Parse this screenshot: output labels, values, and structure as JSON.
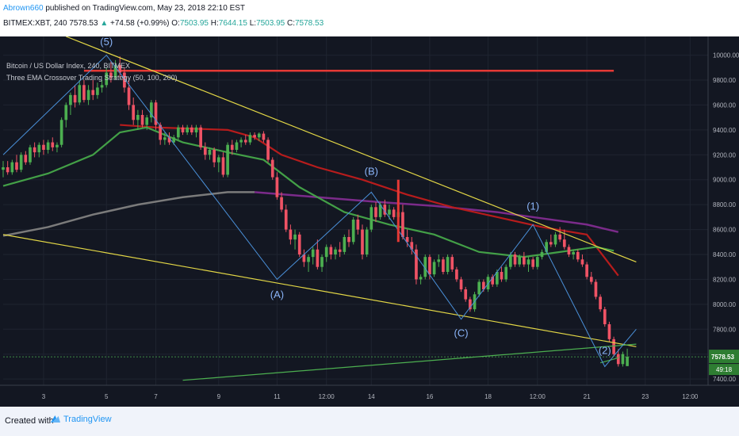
{
  "header": {
    "author": "Abrown660",
    "published_text": "published on TradingView.com, May 23, 2018 22:10 EST",
    "symbol_tf": "BITMEX:XBT, 240",
    "last": "7578.53",
    "change_arrow": "▲",
    "change": "+74.58 (+0.99%)",
    "open_label": "O:",
    "open": "7503.95",
    "high_label": "H:",
    "high": "7644.15",
    "low_label": "L:",
    "low": "7503.95",
    "close_label": "C:",
    "close": "7578.53"
  },
  "legend": {
    "line1": "Bitcoin / US Dollar Index, 240, BITMEX",
    "line2": "Three EMA Crossover Trading Strategy (50, 100, 200)"
  },
  "price_tag": "7578.53",
  "countdown_tag": "49:18",
  "footer": {
    "created_with": "Created with",
    "brand": "TradingView"
  },
  "colors": {
    "background": "#131722",
    "bull": "#4caf50",
    "bear": "#ef5365",
    "trendline": "#e3d746",
    "wave": "#4a90d9",
    "resistance": "#e53935",
    "ema_short": "#43a047",
    "ema_mid": "#b71c1c",
    "ema_long": "#7b7b7b"
  },
  "chart_data": {
    "type": "candlestick",
    "symbol": "XBT",
    "exchange": "BITMEX",
    "interval": "240",
    "ylim": [
      7350,
      10150
    ],
    "y_ticks": [
      7400,
      7600,
      7800,
      8000,
      8200,
      8400,
      8600,
      8800,
      9000,
      9200,
      9400,
      9600,
      9800,
      10000
    ],
    "y_tick_labels": [
      "7400.00",
      "7600.00",
      "7800.00",
      "8000.00",
      "8200.00",
      "8400.00",
      "8600.00",
      "8800.00",
      "9000.00",
      "9200.00",
      "9400.00",
      "9600.00",
      "9800.00",
      "10000.00"
    ],
    "x_range": [
      0,
      140
    ],
    "x_ticks": [
      {
        "i": 9,
        "label": "3"
      },
      {
        "i": 23,
        "label": "5"
      },
      {
        "i": 34,
        "label": "7"
      },
      {
        "i": 48,
        "label": "9"
      },
      {
        "i": 61,
        "label": "11"
      },
      {
        "i": 72,
        "label": "12:00"
      },
      {
        "i": 82,
        "label": "14"
      },
      {
        "i": 95,
        "label": "16"
      },
      {
        "i": 108,
        "label": "18"
      },
      {
        "i": 119,
        "label": "12:00"
      },
      {
        "i": 130,
        "label": "21"
      },
      {
        "i": 143,
        "label": "23"
      },
      {
        "i": 153,
        "label": "12:00"
      }
    ],
    "candles": [
      {
        "o": 9080,
        "h": 9150,
        "l": 9020,
        "c": 9100
      },
      {
        "o": 9100,
        "h": 9150,
        "l": 9040,
        "c": 9060
      },
      {
        "o": 9060,
        "h": 9160,
        "l": 9040,
        "c": 9140
      },
      {
        "o": 9140,
        "h": 9200,
        "l": 9060,
        "c": 9080
      },
      {
        "o": 9080,
        "h": 9220,
        "l": 9060,
        "c": 9200
      },
      {
        "o": 9200,
        "h": 9230,
        "l": 9120,
        "c": 9140
      },
      {
        "o": 9140,
        "h": 9280,
        "l": 9120,
        "c": 9260
      },
      {
        "o": 9260,
        "h": 9300,
        "l": 9180,
        "c": 9220
      },
      {
        "o": 9220,
        "h": 9300,
        "l": 9180,
        "c": 9280
      },
      {
        "o": 9280,
        "h": 9320,
        "l": 9200,
        "c": 9240
      },
      {
        "o": 9240,
        "h": 9320,
        "l": 9210,
        "c": 9300
      },
      {
        "o": 9300,
        "h": 9340,
        "l": 9230,
        "c": 9260
      },
      {
        "o": 9260,
        "h": 9300,
        "l": 9220,
        "c": 9280
      },
      {
        "o": 9280,
        "h": 9500,
        "l": 9260,
        "c": 9480
      },
      {
        "o": 9480,
        "h": 9620,
        "l": 9420,
        "c": 9600
      },
      {
        "o": 9600,
        "h": 9700,
        "l": 9520,
        "c": 9680
      },
      {
        "o": 9680,
        "h": 9760,
        "l": 9580,
        "c": 9620
      },
      {
        "o": 9620,
        "h": 9800,
        "l": 9600,
        "c": 9760
      },
      {
        "o": 9760,
        "h": 9800,
        "l": 9620,
        "c": 9640
      },
      {
        "o": 9640,
        "h": 9760,
        "l": 9600,
        "c": 9720
      },
      {
        "o": 9720,
        "h": 9800,
        "l": 9640,
        "c": 9680
      },
      {
        "o": 9680,
        "h": 9780,
        "l": 9650,
        "c": 9740
      },
      {
        "o": 9740,
        "h": 9800,
        "l": 9700,
        "c": 9760
      },
      {
        "o": 9760,
        "h": 9900,
        "l": 9740,
        "c": 9860
      },
      {
        "o": 9860,
        "h": 9950,
        "l": 9780,
        "c": 9820
      },
      {
        "o": 9820,
        "h": 9960,
        "l": 9800,
        "c": 9920
      },
      {
        "o": 9920,
        "h": 9990,
        "l": 9820,
        "c": 9860
      },
      {
        "o": 9860,
        "h": 9900,
        "l": 9700,
        "c": 9740
      },
      {
        "o": 9740,
        "h": 9800,
        "l": 9560,
        "c": 9600
      },
      {
        "o": 9600,
        "h": 9660,
        "l": 9440,
        "c": 9480
      },
      {
        "o": 9480,
        "h": 9560,
        "l": 9400,
        "c": 9520
      },
      {
        "o": 9520,
        "h": 9560,
        "l": 9420,
        "c": 9440
      },
      {
        "o": 9440,
        "h": 9520,
        "l": 9400,
        "c": 9500
      },
      {
        "o": 9500,
        "h": 9640,
        "l": 9460,
        "c": 9620
      },
      {
        "o": 9620,
        "h": 9640,
        "l": 9400,
        "c": 9440
      },
      {
        "o": 9440,
        "h": 9460,
        "l": 9280,
        "c": 9320
      },
      {
        "o": 9320,
        "h": 9380,
        "l": 9280,
        "c": 9340
      },
      {
        "o": 9340,
        "h": 9380,
        "l": 9280,
        "c": 9300
      },
      {
        "o": 9300,
        "h": 9360,
        "l": 9280,
        "c": 9340
      },
      {
        "o": 9340,
        "h": 9440,
        "l": 9320,
        "c": 9420
      },
      {
        "o": 9420,
        "h": 9440,
        "l": 9360,
        "c": 9380
      },
      {
        "o": 9380,
        "h": 9440,
        "l": 9360,
        "c": 9420
      },
      {
        "o": 9420,
        "h": 9440,
        "l": 9360,
        "c": 9380
      },
      {
        "o": 9380,
        "h": 9440,
        "l": 9340,
        "c": 9420
      },
      {
        "o": 9420,
        "h": 9440,
        "l": 9240,
        "c": 9260
      },
      {
        "o": 9260,
        "h": 9300,
        "l": 9160,
        "c": 9200
      },
      {
        "o": 9200,
        "h": 9260,
        "l": 9160,
        "c": 9240
      },
      {
        "o": 9240,
        "h": 9260,
        "l": 9100,
        "c": 9140
      },
      {
        "o": 9140,
        "h": 9200,
        "l": 9060,
        "c": 9180
      },
      {
        "o": 9180,
        "h": 9220,
        "l": 9020,
        "c": 9040
      },
      {
        "o": 9040,
        "h": 9300,
        "l": 9020,
        "c": 9280
      },
      {
        "o": 9280,
        "h": 9320,
        "l": 9200,
        "c": 9240
      },
      {
        "o": 9240,
        "h": 9320,
        "l": 9220,
        "c": 9300
      },
      {
        "o": 9300,
        "h": 9340,
        "l": 9260,
        "c": 9320
      },
      {
        "o": 9320,
        "h": 9360,
        "l": 9280,
        "c": 9300
      },
      {
        "o": 9300,
        "h": 9380,
        "l": 9280,
        "c": 9360
      },
      {
        "o": 9360,
        "h": 9380,
        "l": 9320,
        "c": 9340
      },
      {
        "o": 9340,
        "h": 9380,
        "l": 9310,
        "c": 9370
      },
      {
        "o": 9370,
        "h": 9390,
        "l": 9300,
        "c": 9320
      },
      {
        "o": 9320,
        "h": 9340,
        "l": 9140,
        "c": 9160
      },
      {
        "o": 9160,
        "h": 9180,
        "l": 9000,
        "c": 9020
      },
      {
        "o": 9020,
        "h": 9060,
        "l": 8840,
        "c": 8860
      },
      {
        "o": 8860,
        "h": 8900,
        "l": 8740,
        "c": 8760
      },
      {
        "o": 8760,
        "h": 8800,
        "l": 8580,
        "c": 8600
      },
      {
        "o": 8600,
        "h": 8640,
        "l": 8480,
        "c": 8520
      },
      {
        "o": 8520,
        "h": 8600,
        "l": 8440,
        "c": 8560
      },
      {
        "o": 8560,
        "h": 8580,
        "l": 8380,
        "c": 8400
      },
      {
        "o": 8400,
        "h": 8440,
        "l": 8300,
        "c": 8340
      },
      {
        "o": 8340,
        "h": 8400,
        "l": 8260,
        "c": 8380
      },
      {
        "o": 8380,
        "h": 8460,
        "l": 8320,
        "c": 8440
      },
      {
        "o": 8440,
        "h": 8520,
        "l": 8280,
        "c": 8300
      },
      {
        "o": 8300,
        "h": 8400,
        "l": 8260,
        "c": 8380
      },
      {
        "o": 8380,
        "h": 8480,
        "l": 8340,
        "c": 8460
      },
      {
        "o": 8460,
        "h": 8480,
        "l": 8360,
        "c": 8400
      },
      {
        "o": 8400,
        "h": 8460,
        "l": 8360,
        "c": 8440
      },
      {
        "o": 8440,
        "h": 8500,
        "l": 8380,
        "c": 8420
      },
      {
        "o": 8420,
        "h": 8560,
        "l": 8400,
        "c": 8540
      },
      {
        "o": 8540,
        "h": 8600,
        "l": 8460,
        "c": 8500
      },
      {
        "o": 8500,
        "h": 8700,
        "l": 8480,
        "c": 8680
      },
      {
        "o": 8680,
        "h": 8720,
        "l": 8560,
        "c": 8600
      },
      {
        "o": 8600,
        "h": 8640,
        "l": 8360,
        "c": 8400
      },
      {
        "o": 8400,
        "h": 8620,
        "l": 8380,
        "c": 8600
      },
      {
        "o": 8600,
        "h": 8800,
        "l": 8580,
        "c": 8780
      },
      {
        "o": 8780,
        "h": 8820,
        "l": 8660,
        "c": 8700
      },
      {
        "o": 8700,
        "h": 8820,
        "l": 8680,
        "c": 8800
      },
      {
        "o": 8800,
        "h": 8840,
        "l": 8700,
        "c": 8720
      },
      {
        "o": 8720,
        "h": 8800,
        "l": 8680,
        "c": 8760
      },
      {
        "o": 8760,
        "h": 8780,
        "l": 8680,
        "c": 8700
      },
      {
        "o": 8700,
        "h": 8780,
        "l": 8640,
        "c": 8740
      },
      {
        "o": 8740,
        "h": 8800,
        "l": 8520,
        "c": 8540
      },
      {
        "o": 8540,
        "h": 8600,
        "l": 8460,
        "c": 8500
      },
      {
        "o": 8500,
        "h": 8540,
        "l": 8400,
        "c": 8440
      },
      {
        "o": 8440,
        "h": 8480,
        "l": 8160,
        "c": 8200
      },
      {
        "o": 8200,
        "h": 8240,
        "l": 8160,
        "c": 8220
      },
      {
        "o": 8220,
        "h": 8400,
        "l": 8200,
        "c": 8380
      },
      {
        "o": 8380,
        "h": 8400,
        "l": 8200,
        "c": 8240
      },
      {
        "o": 8240,
        "h": 8360,
        "l": 8220,
        "c": 8340
      },
      {
        "o": 8340,
        "h": 8400,
        "l": 8300,
        "c": 8360
      },
      {
        "o": 8360,
        "h": 8380,
        "l": 8240,
        "c": 8260
      },
      {
        "o": 8260,
        "h": 8400,
        "l": 8240,
        "c": 8380
      },
      {
        "o": 8380,
        "h": 8400,
        "l": 8260,
        "c": 8280
      },
      {
        "o": 8280,
        "h": 8300,
        "l": 8180,
        "c": 8200
      },
      {
        "o": 8200,
        "h": 8220,
        "l": 8100,
        "c": 8120
      },
      {
        "o": 8120,
        "h": 8140,
        "l": 8020,
        "c": 8040
      },
      {
        "o": 8040,
        "h": 8060,
        "l": 7940,
        "c": 7960
      },
      {
        "o": 7960,
        "h": 8100,
        "l": 7940,
        "c": 8080
      },
      {
        "o": 8080,
        "h": 8200,
        "l": 8060,
        "c": 8180
      },
      {
        "o": 8180,
        "h": 8200,
        "l": 8100,
        "c": 8120
      },
      {
        "o": 8120,
        "h": 8240,
        "l": 8100,
        "c": 8220
      },
      {
        "o": 8220,
        "h": 8240,
        "l": 8140,
        "c": 8160
      },
      {
        "o": 8160,
        "h": 8280,
        "l": 8140,
        "c": 8260
      },
      {
        "o": 8260,
        "h": 8300,
        "l": 8180,
        "c": 8200
      },
      {
        "o": 8200,
        "h": 8320,
        "l": 8180,
        "c": 8300
      },
      {
        "o": 8300,
        "h": 8420,
        "l": 8280,
        "c": 8400
      },
      {
        "o": 8400,
        "h": 8420,
        "l": 8300,
        "c": 8320
      },
      {
        "o": 8320,
        "h": 8400,
        "l": 8300,
        "c": 8380
      },
      {
        "o": 8380,
        "h": 8420,
        "l": 8300,
        "c": 8320
      },
      {
        "o": 8320,
        "h": 8380,
        "l": 8260,
        "c": 8360
      },
      {
        "o": 8360,
        "h": 8380,
        "l": 8280,
        "c": 8300
      },
      {
        "o": 8300,
        "h": 8400,
        "l": 8280,
        "c": 8380
      },
      {
        "o": 8380,
        "h": 8440,
        "l": 8360,
        "c": 8420
      },
      {
        "o": 8420,
        "h": 8520,
        "l": 8400,
        "c": 8500
      },
      {
        "o": 8500,
        "h": 8560,
        "l": 8460,
        "c": 8480
      },
      {
        "o": 8480,
        "h": 8580,
        "l": 8460,
        "c": 8560
      },
      {
        "o": 8560,
        "h": 8620,
        "l": 8500,
        "c": 8520
      },
      {
        "o": 8520,
        "h": 8600,
        "l": 8440,
        "c": 8460
      },
      {
        "o": 8460,
        "h": 8480,
        "l": 8380,
        "c": 8400
      },
      {
        "o": 8400,
        "h": 8440,
        "l": 8360,
        "c": 8420
      },
      {
        "o": 8420,
        "h": 8440,
        "l": 8340,
        "c": 8360
      },
      {
        "o": 8360,
        "h": 8400,
        "l": 8300,
        "c": 8320
      },
      {
        "o": 8320,
        "h": 8340,
        "l": 8200,
        "c": 8220
      },
      {
        "o": 8220,
        "h": 8260,
        "l": 8160,
        "c": 8180
      },
      {
        "o": 8180,
        "h": 8200,
        "l": 8040,
        "c": 8060
      },
      {
        "o": 8060,
        "h": 8080,
        "l": 7940,
        "c": 7960
      },
      {
        "o": 7960,
        "h": 7980,
        "l": 7820,
        "c": 7840
      },
      {
        "o": 7840,
        "h": 7860,
        "l": 7700,
        "c": 7720
      },
      {
        "o": 7720,
        "h": 7740,
        "l": 7580,
        "c": 7600
      },
      {
        "o": 7600,
        "h": 7640,
        "l": 7500,
        "c": 7520
      },
      {
        "o": 7520,
        "h": 7620,
        "l": 7500,
        "c": 7600
      },
      {
        "o": 7504,
        "h": 7644,
        "l": 7504,
        "c": 7579
      }
    ],
    "ema_50": [
      [
        0,
        8950
      ],
      [
        10,
        9050
      ],
      [
        20,
        9200
      ],
      [
        26,
        9380
      ],
      [
        32,
        9420
      ],
      [
        40,
        9300
      ],
      [
        50,
        9220
      ],
      [
        58,
        9160
      ],
      [
        66,
        8940
      ],
      [
        76,
        8740
      ],
      [
        86,
        8640
      ],
      [
        96,
        8560
      ],
      [
        106,
        8420
      ],
      [
        116,
        8380
      ],
      [
        124,
        8420
      ],
      [
        132,
        8460
      ],
      [
        136,
        8430
      ]
    ],
    "ema_100": [
      [
        26,
        9440
      ],
      [
        34,
        9420
      ],
      [
        42,
        9410
      ],
      [
        50,
        9400
      ],
      [
        56,
        9340
      ],
      [
        62,
        9200
      ],
      [
        70,
        9100
      ],
      [
        80,
        9000
      ],
      [
        90,
        8880
      ],
      [
        100,
        8780
      ],
      [
        110,
        8700
      ],
      [
        120,
        8620
      ],
      [
        130,
        8560
      ],
      [
        137,
        8230
      ]
    ],
    "ema_200": [
      [
        0,
        8550
      ],
      [
        10,
        8620
      ],
      [
        20,
        8720
      ],
      [
        30,
        8800
      ],
      [
        40,
        8860
      ],
      [
        50,
        8900
      ],
      [
        56,
        8900
      ]
    ],
    "ema_200_late": [
      [
        56,
        8900
      ],
      [
        70,
        8860
      ],
      [
        84,
        8820
      ],
      [
        96,
        8790
      ],
      [
        110,
        8740
      ],
      [
        120,
        8690
      ],
      [
        130,
        8640
      ],
      [
        137,
        8580
      ]
    ],
    "trendlines": [
      {
        "from": [
          14,
          10150
        ],
        "to": [
          141,
          8340
        ]
      },
      {
        "from": [
          0,
          8560
        ],
        "to": [
          141,
          7660
        ]
      },
      {
        "from": [
          40,
          7390
        ],
        "to": [
          141,
          7680
        ]
      },
      {
        "from": [
          133,
          7530
        ],
        "to": [
          137,
          7570
        ]
      }
    ],
    "resistance_level": 9875,
    "resistance_span": [
      18,
      136
    ],
    "marker": {
      "x": 88,
      "low": 8500,
      "high": 9000
    },
    "elliott_path": [
      [
        0,
        9200
      ],
      [
        23,
        10000
      ],
      [
        61,
        8200
      ],
      [
        82,
        8900
      ],
      [
        102,
        7880
      ],
      [
        118,
        8640
      ],
      [
        134,
        7500
      ],
      [
        141,
        7800
      ]
    ],
    "elliott_labels": [
      {
        "label": "(5)",
        "x": 23,
        "y": 10080
      },
      {
        "label": "(A)",
        "x": 61,
        "y": 8050
      },
      {
        "label": "(B)",
        "x": 82,
        "y": 9040
      },
      {
        "label": "(C)",
        "x": 102,
        "y": 7740
      },
      {
        "label": "(1)",
        "x": 118,
        "y": 8760
      },
      {
        "label": "(2)",
        "x": 134,
        "y": 7600
      }
    ]
  }
}
